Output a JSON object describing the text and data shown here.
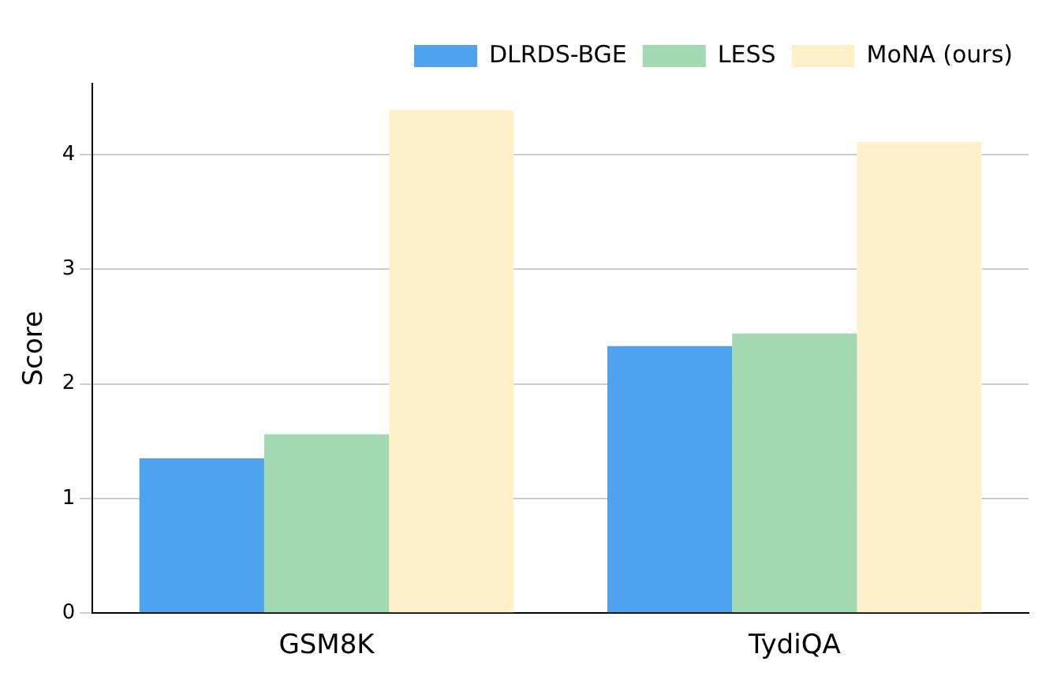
{
  "chart_data": {
    "type": "bar",
    "ylabel": "Score",
    "categories": [
      "GSM8K",
      "TydiQA"
    ],
    "series": [
      {
        "name": "DLRDS-BGE",
        "color": "#4fa3ee",
        "values": [
          1.35,
          2.33
        ]
      },
      {
        "name": "LESS",
        "color": "#a3d9b1",
        "values": [
          1.56,
          2.44
        ]
      },
      {
        "name": "MoNA (ours)",
        "color": "#fff0cc",
        "values": [
          4.39,
          4.11
        ]
      }
    ],
    "ylim": [
      0,
      4.62
    ],
    "yticks": [
      0,
      1,
      2,
      3,
      4
    ],
    "grid": "y",
    "legend": "top right"
  }
}
